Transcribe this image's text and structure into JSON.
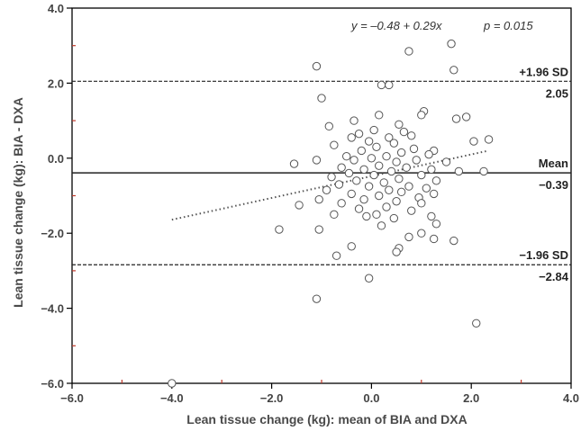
{
  "chart_data": {
    "type": "scatter",
    "title": "",
    "xlabel": "Lean tissue change (kg): mean of BIA and DXA",
    "ylabel": "Lean tissue change (kg): BIA - DXA",
    "xlim": [
      -6.0,
      4.0
    ],
    "ylim": [
      -6.0,
      4.0
    ],
    "x_ticks": [
      {
        "value": -6.0,
        "label": "−6.0"
      },
      {
        "value": -4.0,
        "label": "−4.0"
      },
      {
        "value": -2.0,
        "label": "−2.0"
      },
      {
        "value": 0.0,
        "label": "0.0"
      },
      {
        "value": 2.0,
        "label": "2.0"
      },
      {
        "value": 4.0,
        "label": "4.0"
      }
    ],
    "y_ticks": [
      {
        "value": 4.0,
        "label": "4.0"
      },
      {
        "value": 2.0,
        "label": "2.0"
      },
      {
        "value": 0.0,
        "label": "0.0"
      },
      {
        "value": -2.0,
        "label": "−2.0"
      },
      {
        "value": -4.0,
        "label": "−4.0"
      },
      {
        "value": -6.0,
        "label": "−6.0"
      }
    ],
    "equation": "y = –0.48 + 0.29x",
    "p_value": "p = 0.015",
    "regression": {
      "intercept": -0.48,
      "slope": 0.29,
      "x_range": [
        -4.0,
        2.3
      ]
    },
    "reference_lines": [
      {
        "id": "upper",
        "value": 2.05,
        "name": "+1.96 SD",
        "value_label": "2.05",
        "style": "dashed"
      },
      {
        "id": "mean",
        "value": -0.39,
        "name": "Mean",
        "value_label": "−0.39",
        "style": "solid"
      },
      {
        "id": "lower",
        "value": -2.84,
        "name": "−1.96 SD",
        "value_label": "−2.84",
        "style": "dashed"
      }
    ],
    "grid": false,
    "points": [
      [
        1.6,
        3.05
      ],
      [
        0.75,
        2.85
      ],
      [
        1.65,
        2.35
      ],
      [
        -1.1,
        2.45
      ],
      [
        0.2,
        1.95
      ],
      [
        0.35,
        1.95
      ],
      [
        -1.0,
        1.6
      ],
      [
        1.05,
        1.25
      ],
      [
        1.0,
        1.15
      ],
      [
        1.7,
        1.05
      ],
      [
        1.9,
        1.1
      ],
      [
        0.15,
        1.15
      ],
      [
        -0.35,
        1.0
      ],
      [
        0.55,
        0.9
      ],
      [
        -0.85,
        0.85
      ],
      [
        0.05,
        0.75
      ],
      [
        0.65,
        0.7
      ],
      [
        -0.25,
        0.65
      ],
      [
        0.8,
        0.6
      ],
      [
        0.35,
        0.55
      ],
      [
        -0.4,
        0.55
      ],
      [
        2.35,
        0.5
      ],
      [
        2.05,
        0.45
      ],
      [
        -0.05,
        0.45
      ],
      [
        0.45,
        0.4
      ],
      [
        -0.75,
        0.35
      ],
      [
        0.1,
        0.3
      ],
      [
        0.85,
        0.25
      ],
      [
        1.25,
        0.2
      ],
      [
        -0.2,
        0.2
      ],
      [
        0.6,
        0.15
      ],
      [
        1.15,
        0.1
      ],
      [
        -0.5,
        0.05
      ],
      [
        0.3,
        0.05
      ],
      [
        0.0,
        0.0
      ],
      [
        0.9,
        -0.05
      ],
      [
        -1.1,
        -0.05
      ],
      [
        -0.35,
        -0.05
      ],
      [
        1.5,
        -0.1
      ],
      [
        0.5,
        -0.1
      ],
      [
        -1.55,
        -0.15
      ],
      [
        0.15,
        -0.2
      ],
      [
        -0.6,
        -0.25
      ],
      [
        0.7,
        -0.25
      ],
      [
        1.2,
        -0.3
      ],
      [
        -0.15,
        -0.3
      ],
      [
        2.25,
        -0.35
      ],
      [
        1.75,
        -0.35
      ],
      [
        0.4,
        -0.35
      ],
      [
        -0.45,
        -0.4
      ],
      [
        1.0,
        -0.45
      ],
      [
        0.05,
        -0.45
      ],
      [
        -0.8,
        -0.5
      ],
      [
        0.55,
        -0.55
      ],
      [
        1.3,
        -0.6
      ],
      [
        -0.3,
        -0.6
      ],
      [
        0.25,
        -0.65
      ],
      [
        -0.65,
        -0.7
      ],
      [
        0.75,
        -0.75
      ],
      [
        -0.05,
        -0.75
      ],
      [
        1.1,
        -0.8
      ],
      [
        0.35,
        -0.85
      ],
      [
        -0.9,
        -0.85
      ],
      [
        0.6,
        -0.9
      ],
      [
        1.25,
        -0.95
      ],
      [
        -0.4,
        -0.95
      ],
      [
        0.15,
        -1.0
      ],
      [
        0.95,
        -1.05
      ],
      [
        -0.15,
        -1.1
      ],
      [
        -1.05,
        -1.1
      ],
      [
        0.5,
        -1.15
      ],
      [
        -0.6,
        -1.2
      ],
      [
        1.0,
        -1.2
      ],
      [
        -1.45,
        -1.25
      ],
      [
        0.3,
        -1.3
      ],
      [
        -0.25,
        -1.35
      ],
      [
        0.8,
        -1.4
      ],
      [
        -0.75,
        -1.5
      ],
      [
        0.1,
        -1.5
      ],
      [
        -0.1,
        -1.55
      ],
      [
        1.2,
        -1.55
      ],
      [
        0.45,
        -1.6
      ],
      [
        1.3,
        -1.75
      ],
      [
        0.2,
        -1.8
      ],
      [
        -1.85,
        -1.9
      ],
      [
        -1.05,
        -1.9
      ],
      [
        1.0,
        -2.0
      ],
      [
        0.75,
        -2.1
      ],
      [
        1.25,
        -2.15
      ],
      [
        1.65,
        -2.2
      ],
      [
        -0.4,
        -2.35
      ],
      [
        0.55,
        -2.4
      ],
      [
        0.5,
        -2.5
      ],
      [
        -0.7,
        -2.6
      ],
      [
        -0.05,
        -3.2
      ],
      [
        -1.1,
        -3.75
      ],
      [
        2.1,
        -4.4
      ],
      [
        -4.0,
        -6.0
      ]
    ]
  }
}
